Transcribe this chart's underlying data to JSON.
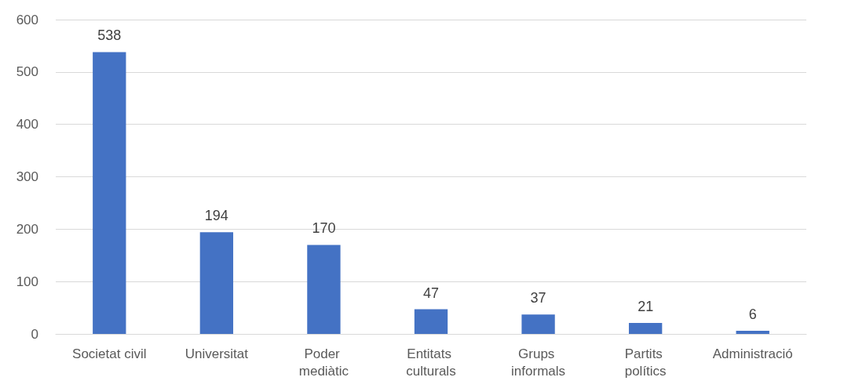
{
  "chart_data": {
    "type": "bar",
    "categories": [
      "Societat civil",
      "Universitat",
      "Poder mediàtic",
      "Entitats culturals",
      "Grups informals",
      "Partits polítics",
      "Administració"
    ],
    "values": [
      538,
      194,
      170,
      47,
      37,
      21,
      6
    ],
    "color": "#4472c4",
    "ylim": [
      0,
      600
    ],
    "yticks": [
      0,
      100,
      200,
      300,
      400,
      500,
      600
    ],
    "grid": "y",
    "data_labels": true
  }
}
